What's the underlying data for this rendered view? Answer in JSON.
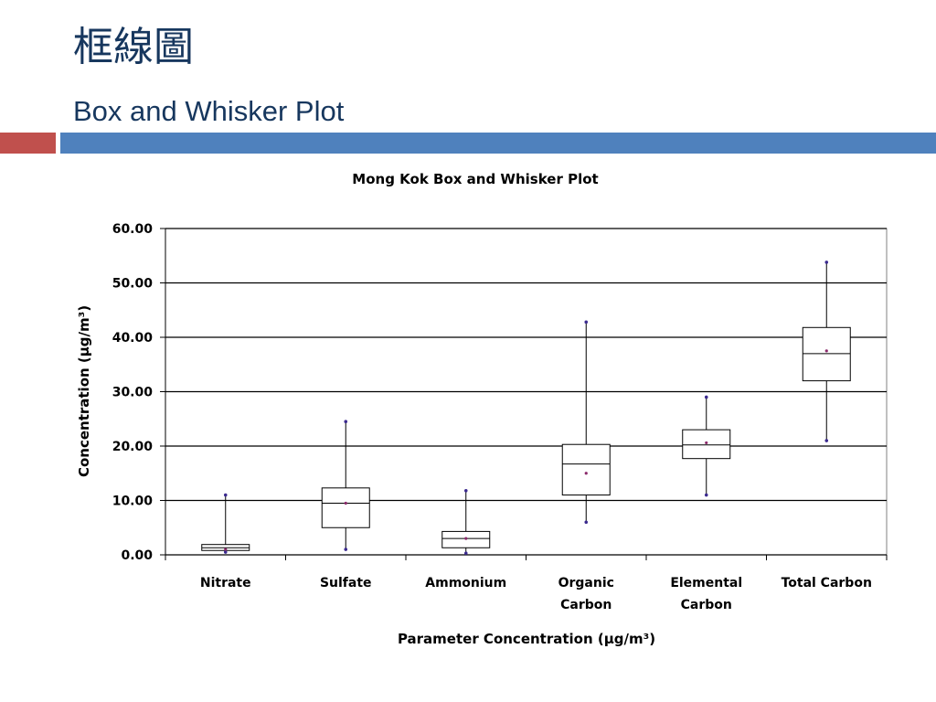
{
  "slide": {
    "title_zh": "框線圖",
    "title_en": "Box and Whisker Plot",
    "title_color": "#17375e",
    "bar_left_color": "#c0504d",
    "bar_right_color": "#4f81bd"
  },
  "chart_data": {
    "type": "box",
    "title": "Mong Kok Box and Whisker Plot",
    "xlabel": "Parameter Concentration (µg/m³)",
    "ylabel": "Concentration (µg/m³)",
    "ylim": [
      0,
      60
    ],
    "yticks": [
      "0.00",
      "10.00",
      "20.00",
      "30.00",
      "40.00",
      "50.00",
      "60.00"
    ],
    "grid": true,
    "categories": [
      [
        "Nitrate"
      ],
      [
        "Sulfate"
      ],
      [
        "Ammonium"
      ],
      [
        "Organic",
        "Carbon"
      ],
      [
        "Elemental",
        "Carbon"
      ],
      [
        "Total Carbon"
      ]
    ],
    "boxes": [
      {
        "min": 0.5,
        "q1": 0.8,
        "median": 1.3,
        "q3": 1.9,
        "max": 11.0,
        "mean": 1.0
      },
      {
        "min": 1.0,
        "q1": 5.0,
        "median": 9.5,
        "q3": 12.3,
        "max": 24.5,
        "mean": 9.5
      },
      {
        "min": 0.3,
        "q1": 1.3,
        "median": 3.0,
        "q3": 4.3,
        "max": 11.8,
        "mean": 3.0
      },
      {
        "min": 6.0,
        "q1": 11.0,
        "median": 16.7,
        "q3": 20.3,
        "max": 42.8,
        "mean": 15.0
      },
      {
        "min": 11.0,
        "q1": 17.7,
        "median": 20.2,
        "q3": 23.0,
        "max": 29.0,
        "mean": 20.6
      },
      {
        "min": 21.0,
        "q1": 32.0,
        "median": 37.0,
        "q3": 41.8,
        "max": 53.8,
        "mean": 37.5
      }
    ]
  }
}
